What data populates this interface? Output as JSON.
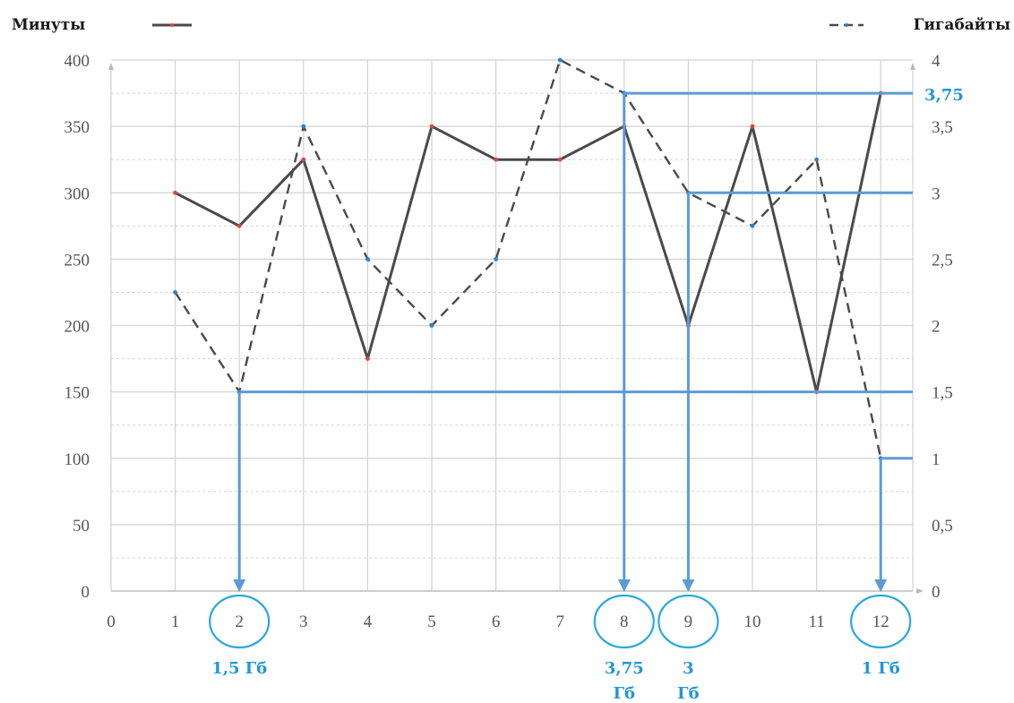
{
  "chart_data": {
    "type": "line",
    "title": "",
    "x": [
      1,
      2,
      3,
      4,
      5,
      6,
      7,
      8,
      9,
      10,
      11,
      12
    ],
    "xticks": [
      "0",
      "1",
      "2",
      "3",
      "4",
      "5",
      "6",
      "7",
      "8",
      "9",
      "10",
      "11",
      "12"
    ],
    "xlim": [
      0,
      12.5
    ],
    "ylim_left": [
      0,
      400
    ],
    "ylim_right": [
      0,
      4
    ],
    "yticks_left": [
      "0",
      "50",
      "100",
      "150",
      "200",
      "250",
      "300",
      "350",
      "400"
    ],
    "yticks_right": [
      "0",
      "0,5",
      "1",
      "1,5",
      "2",
      "2,5",
      "3",
      "3,5",
      "4"
    ],
    "grid": true,
    "legend_placement": "top",
    "series": [
      {
        "name": "Минуты",
        "axis": "left",
        "style": "solid",
        "color": "#4a4a4a",
        "marker_color": "#e0453a",
        "values": [
          300,
          275,
          325,
          175,
          350,
          325,
          325,
          350,
          200,
          350,
          150,
          375
        ]
      },
      {
        "name": "Гигабайты",
        "axis": "right",
        "style": "dashed",
        "color": "#4a4a4a",
        "marker_color": "#2f7fd0",
        "values": [
          2.25,
          1.5,
          3.5,
          2.5,
          2,
          2.5,
          4,
          3.75,
          3,
          2.75,
          3.25,
          1
        ]
      }
    ],
    "annotations": {
      "color": "#5b9bd5",
      "label_color": "#2196d8",
      "circled_x": [
        "2",
        "8",
        "9",
        "12"
      ],
      "right_level_label": "3,75",
      "guides": [
        {
          "x": 2,
          "level": 1.5,
          "label": [
            "1,5 Гб"
          ]
        },
        {
          "x": 8,
          "level": 3.75,
          "label": [
            "3,75",
            "Гб"
          ]
        },
        {
          "x": 9,
          "level": 3,
          "label": [
            "3",
            "Гб"
          ]
        },
        {
          "x": 12,
          "level": 1,
          "label": [
            "1 Гб"
          ]
        }
      ]
    }
  }
}
